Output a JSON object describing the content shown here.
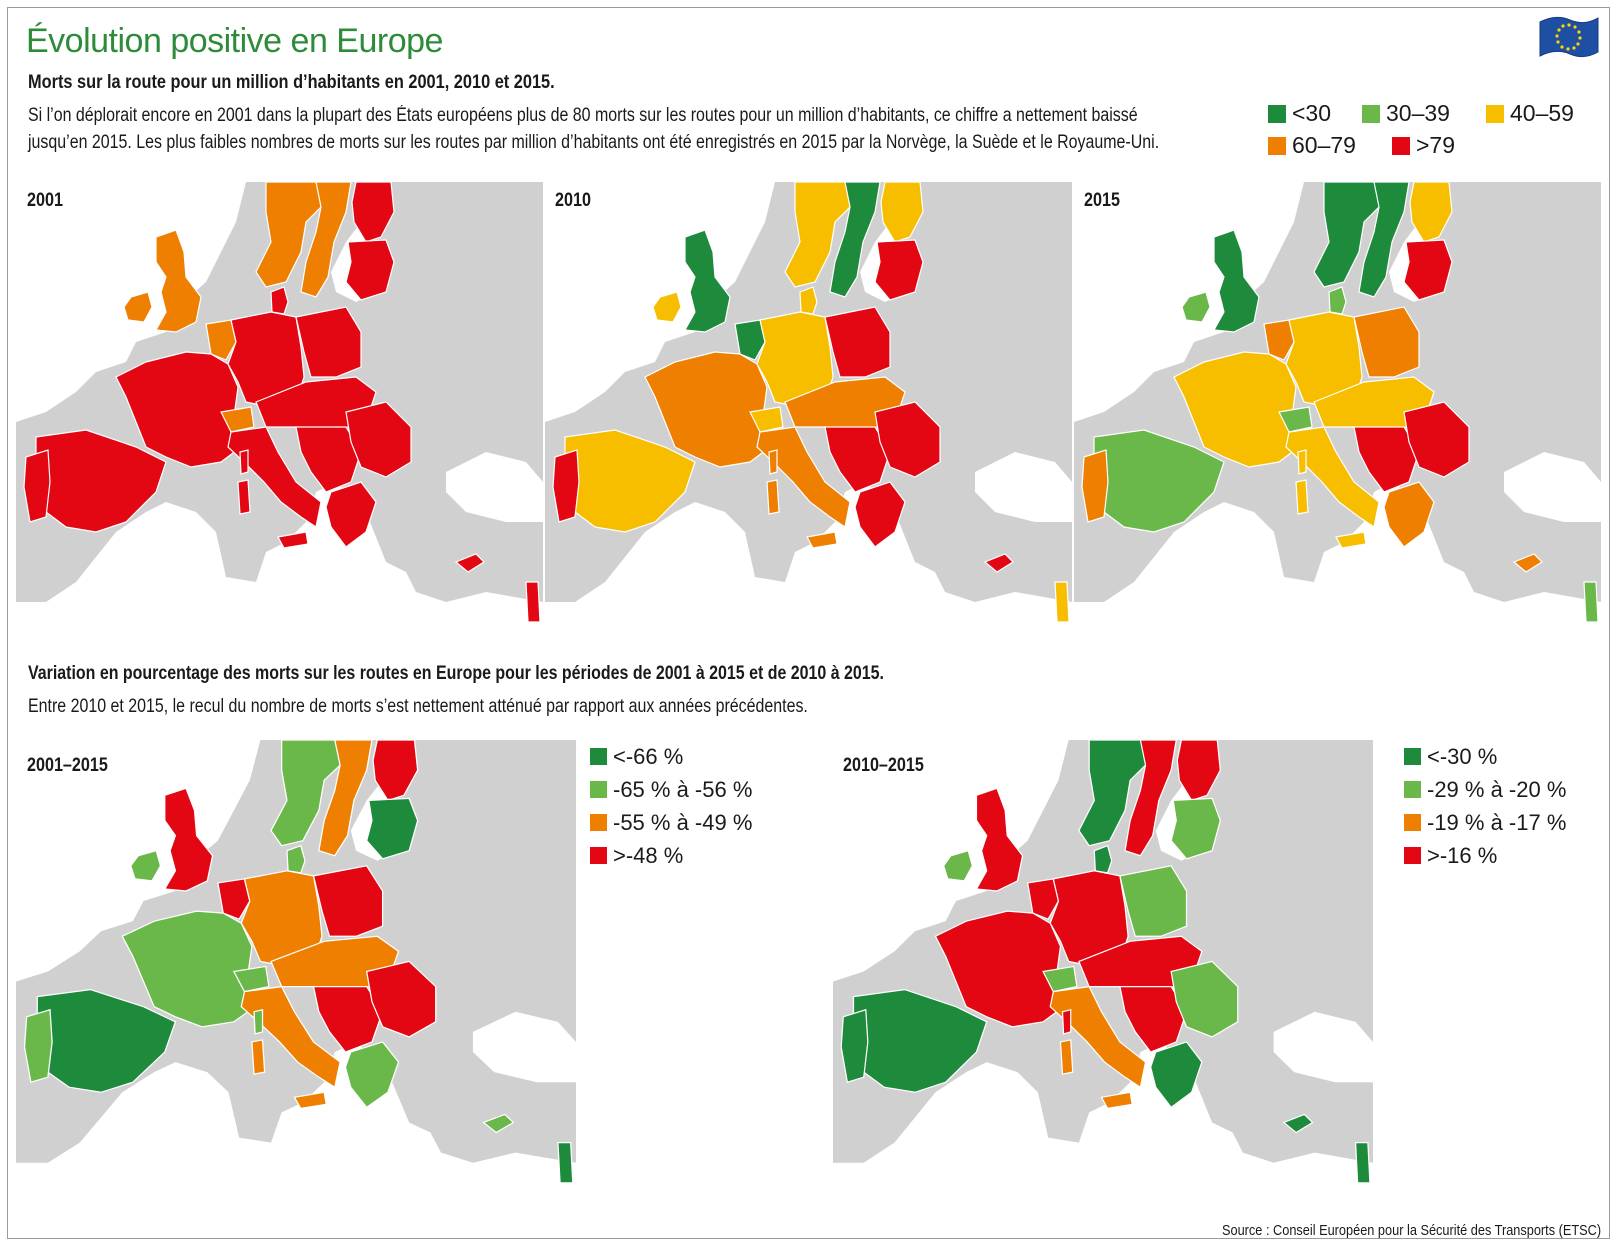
{
  "title": "Évolution positive en Europe",
  "section1": {
    "heading": "Morts sur la route pour un million d’habitants en 2001, 2010 et 2015.",
    "text_line1": "Si l’on déplorait encore en 2001 dans la plupart des États européens plus de 80 morts sur les routes pour un million d’habitants, ce chiffre a nettement baissé",
    "text_line2": "jusqu’en 2015. Les plus faibles nombres de morts sur les routes par million d’habitants ont été enregistrés en 2015 par la Norvège, la Suède et le Royaume-Uni."
  },
  "legend_top": [
    {
      "label": "<30",
      "color": "#1e8a3c"
    },
    {
      "label": "30–39",
      "color": "#6ab84a"
    },
    {
      "label": "40–59",
      "color": "#f7be00"
    },
    {
      "label": "60–79",
      "color": "#ee7f00"
    },
    {
      "label": ">79",
      "color": "#e30613"
    }
  ],
  "maps_top": [
    {
      "label": "2001"
    },
    {
      "label": "2010"
    },
    {
      "label": "2015"
    }
  ],
  "section2": {
    "heading": "Variation en pourcentage des morts sur les routes en Europe pour les périodes de 2001 à 2015 et de 2010 à 2015.",
    "text": "Entre 2010 et 2015, le recul du nombre de morts s’est nettement atténué par rapport aux années précédentes."
  },
  "maps_bottom": [
    {
      "label": "2001–2015"
    },
    {
      "label": "2010–2015"
    }
  ],
  "legend_2001_2015": [
    {
      "label": "<-66 %",
      "color": "#1e8a3c"
    },
    {
      "label": "-65 % à -56 %",
      "color": "#6ab84a"
    },
    {
      "label": "-55 % à -49 %",
      "color": "#ee7f00"
    },
    {
      "label": ">-48 %",
      "color": "#e30613"
    }
  ],
  "legend_2010_2015": [
    {
      "label": "<-30 %",
      "color": "#1e8a3c"
    },
    {
      "label": "-29 % à -20 %",
      "color": "#6ab84a"
    },
    {
      "label": "-19 % à -17 %",
      "color": "#ee7f00"
    },
    {
      "label": ">-16 %",
      "color": "#e30613"
    }
  ],
  "country_colors": {
    "2001": {
      "norway": "#ee7f00",
      "sweden": "#ee7f00",
      "finland": "#e30613",
      "baltics": "#e30613",
      "uk": "#ee7f00",
      "ireland": "#ee7f00",
      "iberia": "#e30613",
      "portugal": "#e30613",
      "france": "#e30613",
      "benelux": "#ee7f00",
      "germany": "#e30613",
      "poland": "#e30613",
      "central": "#e30613",
      "swiss": "#ee7f00",
      "italy": "#e30613",
      "balkans": "#e30613",
      "greece": "#e30613",
      "romania": "#e30613",
      "denmark": "#e30613"
    },
    "2010": {
      "norway": "#f7be00",
      "sweden": "#1e8a3c",
      "finland": "#f7be00",
      "baltics": "#e30613",
      "uk": "#1e8a3c",
      "ireland": "#f7be00",
      "iberia": "#f7be00",
      "portugal": "#e30613",
      "france": "#ee7f00",
      "benelux": "#1e8a3c",
      "germany": "#f7be00",
      "poland": "#e30613",
      "central": "#ee7f00",
      "swiss": "#f7be00",
      "italy": "#ee7f00",
      "balkans": "#e30613",
      "greece": "#e30613",
      "romania": "#e30613",
      "denmark": "#f7be00"
    },
    "2015": {
      "norway": "#1e8a3c",
      "sweden": "#1e8a3c",
      "finland": "#f7be00",
      "baltics": "#e30613",
      "uk": "#1e8a3c",
      "ireland": "#6ab84a",
      "iberia": "#6ab84a",
      "portugal": "#ee7f00",
      "france": "#f7be00",
      "benelux": "#ee7f00",
      "germany": "#f7be00",
      "poland": "#ee7f00",
      "central": "#f7be00",
      "swiss": "#6ab84a",
      "italy": "#f7be00",
      "balkans": "#e30613",
      "greece": "#ee7f00",
      "romania": "#e30613",
      "denmark": "#6ab84a"
    },
    "2001-2015": {
      "norway": "#6ab84a",
      "sweden": "#ee7f00",
      "finland": "#e30613",
      "baltics": "#1e8a3c",
      "uk": "#e30613",
      "ireland": "#6ab84a",
      "iberia": "#1e8a3c",
      "portugal": "#6ab84a",
      "france": "#6ab84a",
      "benelux": "#e30613",
      "germany": "#ee7f00",
      "poland": "#e30613",
      "central": "#ee7f00",
      "swiss": "#6ab84a",
      "italy": "#ee7f00",
      "balkans": "#e30613",
      "greece": "#6ab84a",
      "romania": "#e30613",
      "denmark": "#6ab84a"
    },
    "2010-2015": {
      "norway": "#1e8a3c",
      "sweden": "#e30613",
      "finland": "#e30613",
      "baltics": "#6ab84a",
      "uk": "#e30613",
      "ireland": "#6ab84a",
      "iberia": "#1e8a3c",
      "portugal": "#1e8a3c",
      "france": "#e30613",
      "benelux": "#e30613",
      "germany": "#e30613",
      "poland": "#6ab84a",
      "central": "#e30613",
      "swiss": "#6ab84a",
      "italy": "#ee7f00",
      "balkans": "#e30613",
      "greece": "#1e8a3c",
      "romania": "#6ab84a",
      "denmark": "#1e8a3c"
    }
  },
  "source": "Source : Conseil Européen pour la Sécurité des Transports (ETSC)"
}
